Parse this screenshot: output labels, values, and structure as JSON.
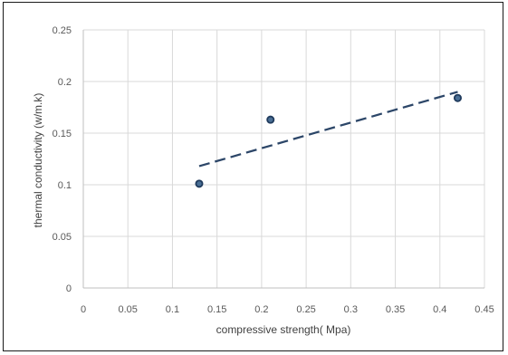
{
  "chart_data": {
    "type": "scatter",
    "title": "",
    "xlabel": "compressive strength( Mpa)",
    "ylabel": "thermal conductivity  (w/m.k)",
    "xlim": [
      0,
      0.45
    ],
    "ylim": [
      0,
      0.25
    ],
    "x_ticks": [
      "0",
      "0.05",
      "0.1",
      "0.15",
      "0.2",
      "0.25",
      "0.3",
      "0.35",
      "0.4",
      "0.45"
    ],
    "y_ticks": [
      "0",
      "0.05",
      "0.1",
      "0.15",
      "0.2",
      "0.25"
    ],
    "grid": true,
    "legend": "none",
    "series": [
      {
        "points": [
          {
            "x": 0.13,
            "y": 0.101
          },
          {
            "x": 0.21,
            "y": 0.163
          },
          {
            "x": 0.42,
            "y": 0.184
          }
        ],
        "marker_color": "#1f3a5c",
        "marker_fill": "#4a6f95"
      }
    ],
    "trendline": {
      "type": "linear",
      "style": "dashed",
      "color": "#2c4668",
      "start": {
        "x": 0.13,
        "y": 0.118
      },
      "end": {
        "x": 0.42,
        "y": 0.19
      }
    },
    "colors": {
      "grid": "#d9d9d9",
      "axis": "#bfbfbf",
      "frame": "#1a1a1a"
    }
  }
}
